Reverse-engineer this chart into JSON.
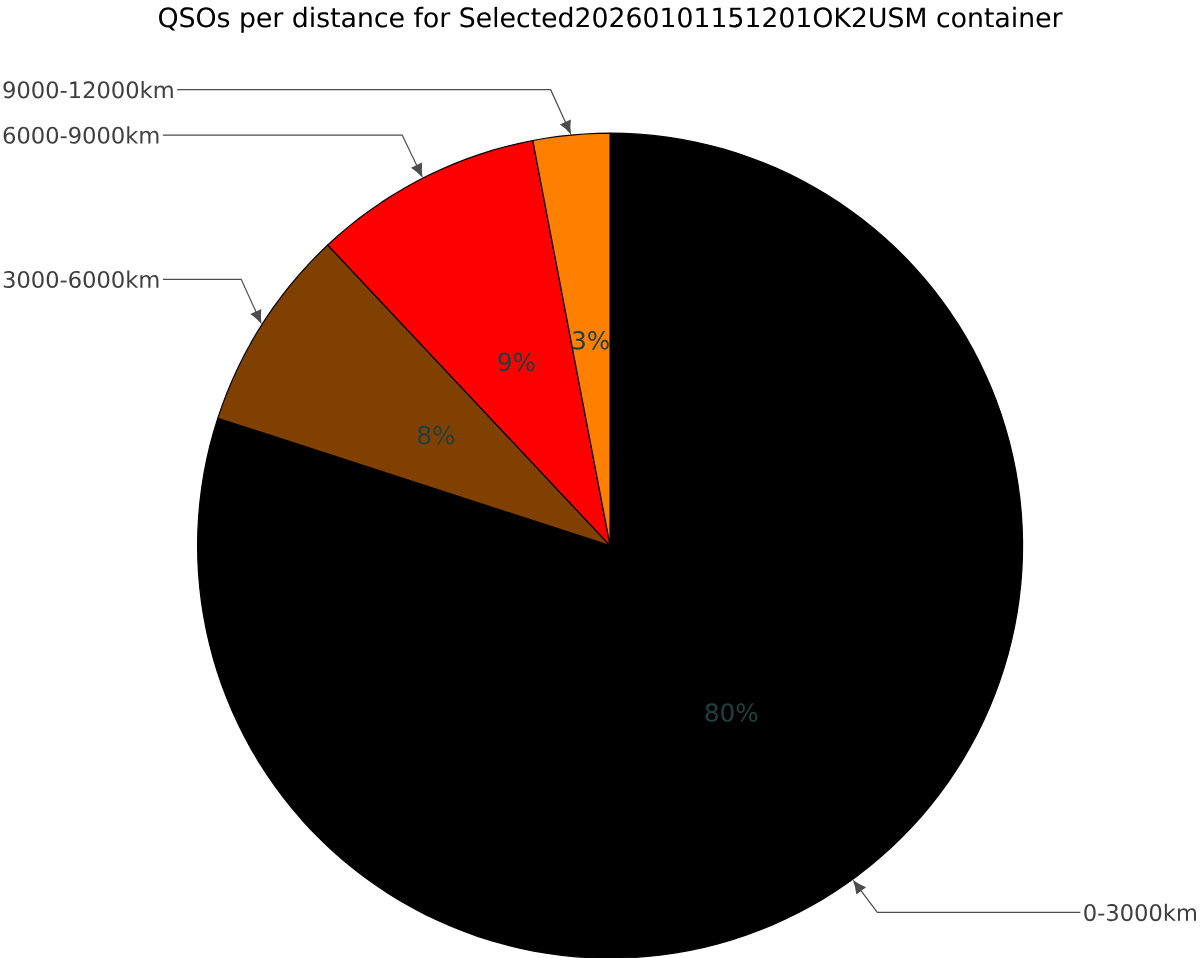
{
  "chart_data": {
    "type": "pie",
    "title": "QSOs per distance for Selected20260101151201OK2USM container",
    "categories": [
      "0-3000km",
      "3000-6000km",
      "6000-9000km",
      "9000-12000km"
    ],
    "values": [
      80,
      8,
      9,
      3
    ],
    "value_labels": [
      "80%",
      "8%",
      "9%",
      "3%"
    ],
    "colors": [
      "#000000",
      "#804000",
      "#ff0000",
      "#ff8000"
    ]
  }
}
